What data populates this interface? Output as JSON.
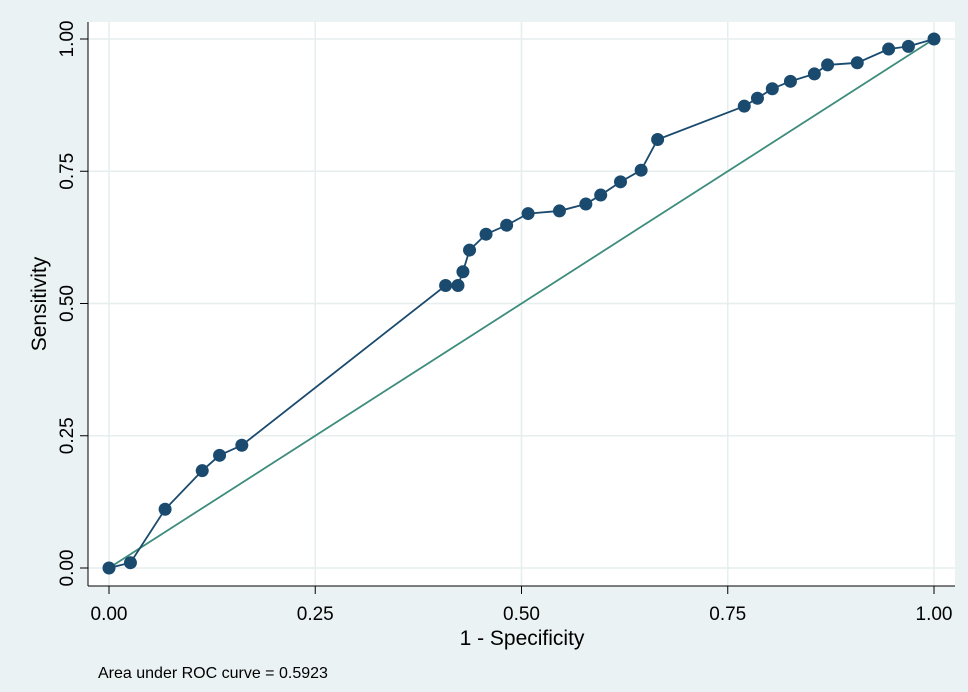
{
  "chart_data": {
    "type": "line",
    "xlabel": "1 - Specificity",
    "ylabel": "Sensitivity",
    "note": "Area under ROC curve = 0.5923",
    "xlim": [
      0,
      1
    ],
    "ylim": [
      0,
      1
    ],
    "x_ticks": [
      "0.00",
      "0.25",
      "0.50",
      "0.75",
      "1.00"
    ],
    "y_ticks": [
      "0.00",
      "0.25",
      "0.50",
      "0.75",
      "1.00"
    ],
    "grid": true,
    "series": [
      {
        "color": "#1a4a6e",
        "marker": "circle",
        "points": [
          [
            0.0,
            0.0
          ],
          [
            0.026,
            0.01
          ],
          [
            0.068,
            0.111
          ],
          [
            0.113,
            0.184
          ],
          [
            0.134,
            0.213
          ],
          [
            0.161,
            0.232
          ],
          [
            0.408,
            0.534
          ],
          [
            0.423,
            0.534
          ],
          [
            0.429,
            0.56
          ],
          [
            0.437,
            0.601
          ],
          [
            0.457,
            0.631
          ],
          [
            0.482,
            0.648
          ],
          [
            0.508,
            0.67
          ],
          [
            0.546,
            0.675
          ],
          [
            0.578,
            0.688
          ],
          [
            0.596,
            0.705
          ],
          [
            0.62,
            0.73
          ],
          [
            0.645,
            0.752
          ],
          [
            0.665,
            0.81
          ],
          [
            0.77,
            0.873
          ],
          [
            0.786,
            0.888
          ],
          [
            0.804,
            0.906
          ],
          [
            0.826,
            0.92
          ],
          [
            0.855,
            0.934
          ],
          [
            0.871,
            0.951
          ],
          [
            0.907,
            0.955
          ],
          [
            0.945,
            0.981
          ],
          [
            0.969,
            0.986
          ],
          [
            1.0,
            1.0
          ]
        ]
      },
      {
        "color": "#3d8c7c",
        "marker": "none",
        "points": [
          [
            0,
            0
          ],
          [
            1,
            1
          ]
        ]
      }
    ]
  }
}
